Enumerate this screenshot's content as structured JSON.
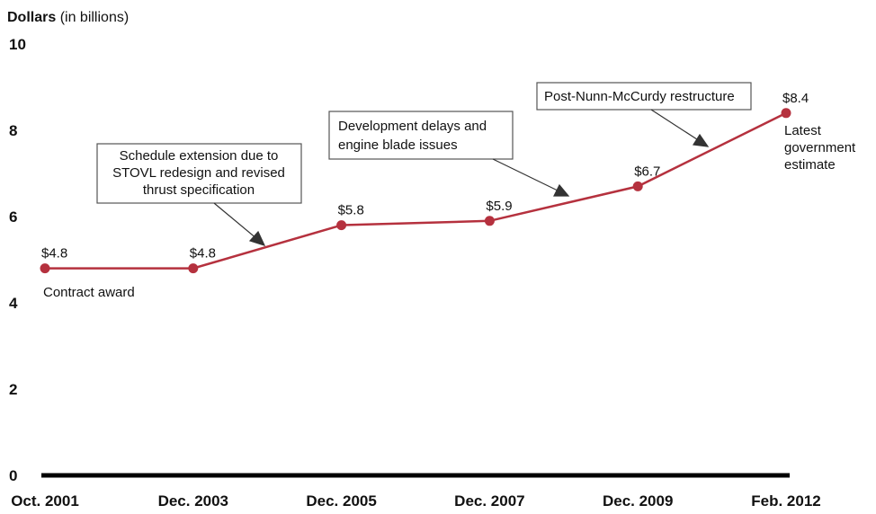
{
  "chart_data": {
    "type": "line",
    "ylabel_bold": "Dollars",
    "ylabel_rest": " (in billions)",
    "ylim": [
      0,
      10
    ],
    "y_ticks": [
      "0",
      "2",
      "4",
      "6",
      "8",
      "10"
    ],
    "y_tick_values": [
      0,
      2,
      4,
      6,
      8,
      10
    ],
    "categories": [
      "Oct. 2001",
      "Dec. 2003",
      "Dec. 2005",
      "Dec. 2007",
      "Dec. 2009",
      "Feb. 2012"
    ],
    "values": [
      4.8,
      4.8,
      5.8,
      5.9,
      6.7,
      8.4
    ],
    "data_labels": [
      "$4.8",
      "$4.8",
      "$5.8",
      "$5.9",
      "$6.7",
      "$8.4"
    ],
    "line_color": "#b5313e",
    "grid": false,
    "point_notes": {
      "first": "Contract award",
      "last": [
        "Latest",
        "government",
        "estimate"
      ]
    },
    "annotations": [
      {
        "lines": [
          "Schedule extension due to",
          "STOVL redesign and revised",
          "thrust specification"
        ]
      },
      {
        "lines": [
          "Development delays and",
          "engine blade issues"
        ]
      },
      {
        "lines": [
          "Post-Nunn-McCurdy restructure"
        ]
      }
    ]
  }
}
